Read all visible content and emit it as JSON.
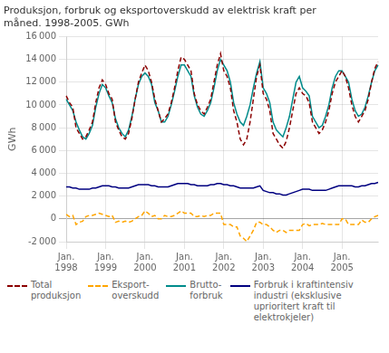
{
  "chart_data": {
    "type": "line",
    "title": "Produksjon, forbruk og eksportoverskudd av elektrisk kraft per\nmåned. 1998-2005. GWh",
    "y_label": "GWh",
    "categories": [
      "Jan.\n1998",
      null,
      null,
      null,
      null,
      null,
      null,
      null,
      null,
      null,
      null,
      null,
      "Jan.\n1999",
      null,
      null,
      null,
      null,
      null,
      null,
      null,
      null,
      null,
      null,
      null,
      "Jan.\n2000",
      null,
      null,
      null,
      null,
      null,
      null,
      null,
      null,
      null,
      null,
      null,
      "Jan.\n2001",
      null,
      null,
      null,
      null,
      null,
      null,
      null,
      null,
      null,
      null,
      null,
      "Jan.\n2002",
      null,
      null,
      null,
      null,
      null,
      null,
      null,
      null,
      null,
      null,
      null,
      "Jan.\n2003",
      null,
      null,
      null,
      null,
      null,
      null,
      null,
      null,
      null,
      null,
      null,
      "Jan.\n2004",
      null,
      null,
      null,
      null,
      null,
      null,
      null,
      null,
      null,
      null,
      null,
      "Jan.\n2005",
      null,
      null,
      null,
      null,
      null,
      null,
      null,
      null,
      null,
      null,
      null
    ],
    "ylim": [
      -2000,
      16000
    ],
    "yticks": [
      {
        "value": -2000,
        "label": "-2 000"
      },
      0,
      {
        "value": 2000,
        "label": "2 000"
      },
      {
        "value": 4000,
        "label": "4 000"
      },
      {
        "value": 6000,
        "label": "6 000"
      },
      {
        "value": 8000,
        "label": "8 000"
      },
      {
        "value": 10000,
        "label": "10 000"
      },
      {
        "value": 12000,
        "label": "12 000"
      },
      {
        "value": 14000,
        "label": "14 000"
      },
      {
        "value": 16000,
        "label": "16 000"
      }
    ],
    "grid": true,
    "legend": "bottom",
    "series": [
      {
        "name": "Total\nproduksjon",
        "color": "#8B0000",
        "line_style": "dashed",
        "values": [
          10800,
          10200,
          9800,
          8000,
          7500,
          7000,
          7200,
          7800,
          8500,
          10200,
          11500,
          12200,
          11800,
          11000,
          10500,
          8500,
          7800,
          7200,
          7000,
          7500,
          8800,
          10500,
          12000,
          12800,
          13500,
          13000,
          12000,
          10500,
          9500,
          8500,
          8800,
          9200,
          10200,
          11500,
          13000,
          14200,
          14000,
          13500,
          13000,
          11000,
          10000,
          9500,
          9200,
          9800,
          10500,
          12000,
          13500,
          14500,
          13000,
          12500,
          11500,
          9500,
          8500,
          7000,
          6500,
          7000,
          8500,
          10500,
          12500,
          13500,
          11000,
          10500,
          9500,
          7500,
          7000,
          6500,
          6200,
          6800,
          8000,
          9500,
          11000,
          11500,
          11000,
          10800,
          10200,
          8500,
          8000,
          7500,
          7800,
          8500,
          9500,
          11000,
          12000,
          12500,
          13000,
          12500,
          11500,
          10000,
          9000,
          8500,
          9000,
          9500,
          10500,
          12000,
          13200,
          13800
        ]
      },
      {
        "name": "Eksport-\noverskudd",
        "color": "#FFA500",
        "line_style": "dashed",
        "values": [
          400,
          200,
          300,
          -500,
          -300,
          -200,
          200,
          300,
          300,
          400,
          500,
          400,
          300,
          200,
          300,
          -300,
          -200,
          -300,
          -200,
          -300,
          -200,
          0,
          200,
          300,
          700,
          500,
          200,
          300,
          0,
          0,
          300,
          200,
          200,
          300,
          500,
          700,
          500,
          500,
          500,
          200,
          200,
          300,
          200,
          300,
          300,
          500,
          500,
          500,
          -500,
          -500,
          -500,
          -700,
          -700,
          -1500,
          -1700,
          -2000,
          -1500,
          -1000,
          -300,
          -300,
          -500,
          -500,
          -700,
          -1000,
          -1200,
          -1000,
          -1000,
          -1200,
          -1000,
          -1000,
          -1000,
          -1000,
          -500,
          -400,
          -600,
          -500,
          -500,
          -500,
          -400,
          -500,
          -500,
          -500,
          -500,
          -500,
          0,
          0,
          -500,
          -500,
          -500,
          -500,
          -100,
          -300,
          -300,
          0,
          200,
          300
        ]
      },
      {
        "name": "Brutto-\nforbruk",
        "color": "#008B8B",
        "line_style": "solid",
        "values": [
          10500,
          10000,
          9500,
          8500,
          7800,
          7200,
          7000,
          7500,
          8200,
          9800,
          11000,
          11800,
          11500,
          10800,
          10200,
          8800,
          8000,
          7500,
          7200,
          7800,
          9000,
          10500,
          11800,
          12500,
          12800,
          12500,
          11800,
          10200,
          9500,
          8500,
          8500,
          9000,
          10000,
          11200,
          12500,
          13500,
          13500,
          13000,
          12500,
          10800,
          9800,
          9200,
          9000,
          9500,
          10200,
          11500,
          13000,
          14000,
          13500,
          13000,
          12000,
          10200,
          9200,
          8500,
          8200,
          9000,
          10000,
          11500,
          12800,
          13800,
          11500,
          11000,
          10200,
          8500,
          7800,
          7500,
          7200,
          8000,
          9000,
          10500,
          12000,
          12500,
          11500,
          11200,
          10800,
          9000,
          8500,
          8000,
          8200,
          9000,
          10000,
          11500,
          12500,
          13000,
          13000,
          12500,
          12000,
          10500,
          9500,
          9000,
          9200,
          9800,
          10800,
          12000,
          13000,
          13500
        ]
      },
      {
        "name": "Forbruk i kraftintensiv\nindustri (eksklusive\nuprioritert kraft til\nelektrokjeler)",
        "color": "#000080",
        "line_style": "solid",
        "values": [
          2800,
          2800,
          2700,
          2700,
          2600,
          2600,
          2600,
          2600,
          2700,
          2700,
          2800,
          2900,
          2900,
          2900,
          2800,
          2800,
          2700,
          2700,
          2700,
          2700,
          2800,
          2900,
          3000,
          3000,
          3000,
          3000,
          2900,
          2900,
          2800,
          2800,
          2800,
          2800,
          2900,
          3000,
          3100,
          3100,
          3100,
          3100,
          3000,
          3000,
          2900,
          2900,
          2900,
          2900,
          3000,
          3000,
          3100,
          3100,
          3000,
          3000,
          2900,
          2900,
          2800,
          2700,
          2700,
          2700,
          2700,
          2700,
          2800,
          2900,
          2500,
          2400,
          2300,
          2300,
          2200,
          2200,
          2100,
          2100,
          2200,
          2300,
          2400,
          2500,
          2600,
          2600,
          2600,
          2500,
          2500,
          2500,
          2500,
          2500,
          2600,
          2700,
          2800,
          2900,
          2900,
          2900,
          2900,
          2900,
          2800,
          2800,
          2900,
          2900,
          3000,
          3100,
          3100,
          3200
        ]
      }
    ]
  }
}
